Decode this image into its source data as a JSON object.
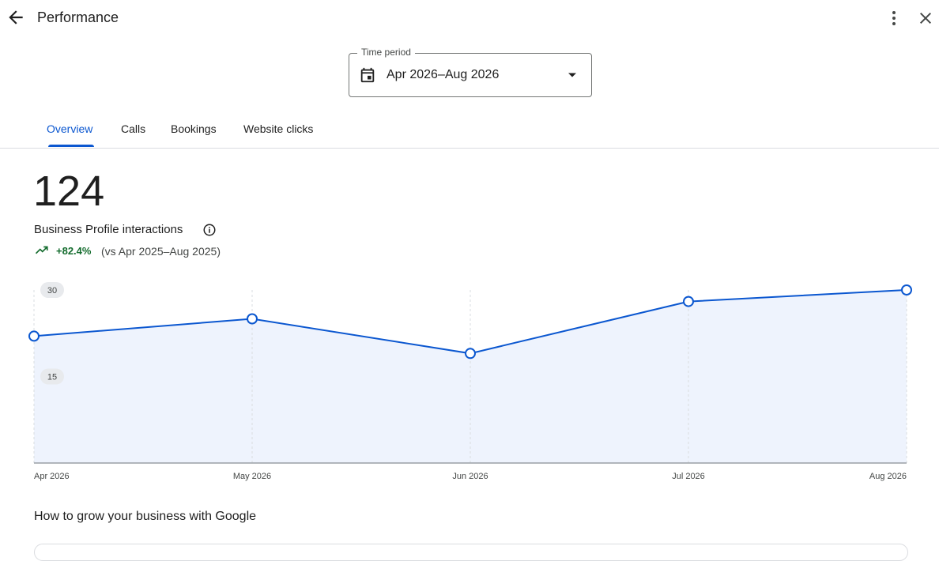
{
  "header": {
    "title": "Performance"
  },
  "time_period": {
    "label": "Time period",
    "value": "Apr 2026–Aug 2026"
  },
  "tabs": [
    {
      "label": "Overview",
      "active": true
    },
    {
      "label": "Calls",
      "active": false
    },
    {
      "label": "Bookings",
      "active": false
    },
    {
      "label": "Website clicks",
      "active": false
    }
  ],
  "metric": {
    "value": "124",
    "label": "Business Profile interactions",
    "change": "+82.4%",
    "comparison": "(vs Apr 2025–Aug 2025)"
  },
  "colors": {
    "accent": "#0b57d0",
    "positive": "#146c2e",
    "fill": "#eef3fd"
  },
  "chart_data": {
    "type": "area",
    "categories": [
      "Apr 2026",
      "May 2026",
      "Jun 2026",
      "Jul 2026",
      "Aug 2026"
    ],
    "values": [
      22,
      25,
      19,
      28,
      30
    ],
    "yticks": [
      "30",
      "15"
    ],
    "ylim": [
      0,
      30
    ],
    "grid": "vertical dashed"
  },
  "section": {
    "title": "How to grow your business with Google"
  }
}
